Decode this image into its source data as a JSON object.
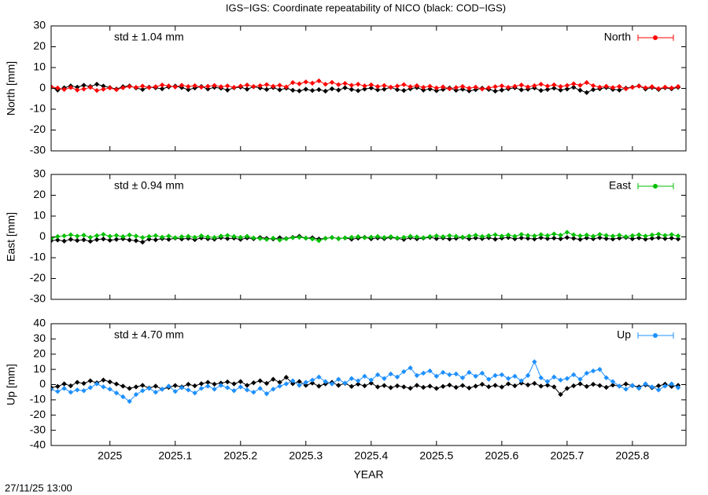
{
  "title": "IGS−IGS: Coordinate repeatability of NICO (black: COD−IGS)",
  "footer": "27/11/25 13:00",
  "chart_data": [
    {
      "type": "line",
      "ylabel": "North [mm]",
      "annotation": "std ± 1.04 mm",
      "xlim": [
        2024.91,
        2025.882
      ],
      "xticks": [
        2025,
        2025.1,
        2025.2,
        2025.3,
        2025.4,
        2025.5,
        2025.6,
        2025.7,
        2025.8
      ],
      "ylim": [
        -30,
        30
      ],
      "yticks": [
        -30,
        -20,
        -10,
        0,
        10,
        20,
        30
      ],
      "x": [
        2024.91,
        2024.92,
        2024.93,
        2024.94,
        2024.95,
        2024.96,
        2024.97,
        2024.98,
        2024.99,
        2025.0,
        2025.01,
        2025.02,
        2025.03,
        2025.04,
        2025.05,
        2025.06,
        2025.07,
        2025.08,
        2025.09,
        2025.1,
        2025.11,
        2025.12,
        2025.13,
        2025.14,
        2025.15,
        2025.16,
        2025.17,
        2025.18,
        2025.19,
        2025.2,
        2025.21,
        2025.22,
        2025.23,
        2025.24,
        2025.25,
        2025.26,
        2025.27,
        2025.28,
        2025.29,
        2025.3,
        2025.31,
        2025.32,
        2025.33,
        2025.34,
        2025.35,
        2025.36,
        2025.37,
        2025.38,
        2025.39,
        2025.4,
        2025.41,
        2025.42,
        2025.43,
        2025.44,
        2025.45,
        2025.46,
        2025.47,
        2025.48,
        2025.49,
        2025.5,
        2025.51,
        2025.52,
        2025.53,
        2025.54,
        2025.55,
        2025.56,
        2025.57,
        2025.58,
        2025.59,
        2025.6,
        2025.61,
        2025.62,
        2025.63,
        2025.64,
        2025.65,
        2025.66,
        2025.67,
        2025.68,
        2025.69,
        2025.7,
        2025.71,
        2025.72,
        2025.73,
        2025.74,
        2025.75,
        2025.76,
        2025.77,
        2025.78,
        2025.79,
        2025.8,
        2025.81,
        2025.82,
        2025.83,
        2025.84,
        2025.85,
        2025.86,
        2025.87
      ],
      "series": [
        {
          "color": "#000000",
          "values": [
            0.5,
            -0.8,
            0.3,
            1.2,
            0.6,
            1.5,
            0.9,
            2.0,
            1.1,
            0.4,
            -0.3,
            0.8,
            1.2,
            0.2,
            -0.5,
            0.6,
            0.3,
            -0.2,
            0.7,
            1.1,
            0.4,
            -0.6,
            0.2,
            0.9,
            -0.3,
            0.5,
            0.1,
            -0.8,
            0.3,
            0.6,
            -0.4,
            0.8,
            0.2,
            -0.5,
            0.4,
            -0.7,
            0.1,
            -0.9,
            -1.2,
            -0.4,
            -1.0,
            -0.6,
            -1.3,
            -0.2,
            -0.8,
            0.3,
            -0.5,
            -1.1,
            -0.3,
            0.2,
            -0.7,
            -0.4,
            0.5,
            -0.6,
            -1.0,
            -0.2,
            0.4,
            -0.8,
            -0.3,
            -1.1,
            -0.5,
            0.2,
            -0.9,
            -0.4,
            -1.2,
            -0.6,
            0.1,
            -0.5,
            -1.3,
            -0.8,
            -0.2,
            0.3,
            -0.7,
            -0.4,
            0.2,
            -1.0,
            -0.5,
            0.1,
            -0.8,
            -0.3,
            0.5,
            -0.9,
            -2.0,
            -0.6,
            -0.2,
            0.4,
            -0.5,
            -0.8,
            0.1,
            0.6,
            1.2,
            -0.3,
            0.4,
            -0.5,
            0.3,
            -0.2,
            0.5
          ]
        },
        {
          "name": "North",
          "color": "#ff0000",
          "values": [
            0.8,
            0.2,
            -0.5,
            0.4,
            -0.8,
            -0.3,
            0.5,
            -1.0,
            -0.4,
            0.2,
            -0.6,
            0.3,
            0.9,
            0.5,
            1.1,
            0.4,
            0.8,
            1.6,
            1.2,
            0.7,
            1.5,
            0.9,
            1.3,
            0.6,
            1.0,
            1.4,
            0.8,
            1.2,
            0.5,
            1.1,
            1.6,
            0.9,
            1.3,
            1.8,
            1.0,
            1.5,
            0.7,
            2.8,
            2.2,
            3.1,
            2.5,
            3.6,
            2.0,
            2.9,
            1.8,
            2.4,
            1.5,
            2.0,
            1.2,
            1.7,
            0.9,
            1.4,
            0.6,
            1.1,
            1.8,
            0.8,
            1.3,
            0.5,
            1.0,
            0.2,
            0.7,
            -0.2,
            0.4,
            0.9,
            0.1,
            0.6,
            -0.3,
            0.3,
            0.8,
            1.2,
            0.5,
            1.0,
            1.6,
            0.7,
            1.3,
            2.0,
            1.1,
            1.7,
            0.9,
            1.4,
            2.2,
            1.5,
            2.8,
            1.3,
            0.6,
            1.0,
            0.4,
            0.9,
            -0.2,
            0.5,
            1.1,
            0.3,
            0.8,
            -0.1,
            0.6,
            0.2,
            0.9
          ]
        }
      ]
    },
    {
      "type": "line",
      "ylabel": "East [mm]",
      "annotation": "std ± 0.94 mm",
      "xlim": [
        2024.91,
        2025.882
      ],
      "xticks": [
        2025,
        2025.1,
        2025.2,
        2025.3,
        2025.4,
        2025.5,
        2025.6,
        2025.7,
        2025.8
      ],
      "ylim": [
        -30,
        30
      ],
      "yticks": [
        -30,
        -20,
        -10,
        0,
        10,
        20,
        30
      ],
      "x": [
        2024.91,
        2024.92,
        2024.93,
        2024.94,
        2024.95,
        2024.96,
        2024.97,
        2024.98,
        2024.99,
        2025.0,
        2025.01,
        2025.02,
        2025.03,
        2025.04,
        2025.05,
        2025.06,
        2025.07,
        2025.08,
        2025.09,
        2025.1,
        2025.11,
        2025.12,
        2025.13,
        2025.14,
        2025.15,
        2025.16,
        2025.17,
        2025.18,
        2025.19,
        2025.2,
        2025.21,
        2025.22,
        2025.23,
        2025.24,
        2025.25,
        2025.26,
        2025.27,
        2025.28,
        2025.29,
        2025.3,
        2025.31,
        2025.32,
        2025.33,
        2025.34,
        2025.35,
        2025.36,
        2025.37,
        2025.38,
        2025.39,
        2025.4,
        2025.41,
        2025.42,
        2025.43,
        2025.44,
        2025.45,
        2025.46,
        2025.47,
        2025.48,
        2025.49,
        2025.5,
        2025.51,
        2025.52,
        2025.53,
        2025.54,
        2025.55,
        2025.56,
        2025.57,
        2025.58,
        2025.59,
        2025.6,
        2025.61,
        2025.62,
        2025.63,
        2025.64,
        2025.65,
        2025.66,
        2025.67,
        2025.68,
        2025.69,
        2025.7,
        2025.71,
        2025.72,
        2025.73,
        2025.74,
        2025.75,
        2025.76,
        2025.77,
        2025.78,
        2025.79,
        2025.8,
        2025.81,
        2025.82,
        2025.83,
        2025.84,
        2025.85,
        2025.86,
        2025.87
      ],
      "series": [
        {
          "color": "#000000",
          "values": [
            -1.8,
            -1.5,
            -2.0,
            -1.2,
            -1.7,
            -1.4,
            -2.1,
            -1.3,
            -1.0,
            -1.6,
            -1.2,
            -0.9,
            -1.5,
            -1.8,
            -2.5,
            -1.1,
            -1.4,
            -0.8,
            -1.2,
            -0.6,
            -1.0,
            -0.7,
            -1.3,
            -0.5,
            -0.9,
            -1.1,
            -0.4,
            -0.8,
            -0.6,
            -1.2,
            -0.5,
            -0.9,
            -0.3,
            -0.7,
            -1.0,
            -0.4,
            -0.8,
            -0.2,
            0.3,
            -0.6,
            -0.4,
            -1.0,
            -0.7,
            -0.3,
            -0.8,
            -0.5,
            -1.1,
            -0.6,
            -0.2,
            -0.9,
            -0.5,
            -0.8,
            -0.3,
            -0.7,
            -1.2,
            -0.4,
            -0.9,
            -0.6,
            -0.2,
            -0.8,
            -0.5,
            -1.0,
            -0.7,
            -0.3,
            -0.9,
            -0.5,
            -0.8,
            -0.4,
            -1.1,
            -0.6,
            -0.3,
            -0.9,
            -0.5,
            -0.7,
            -1.0,
            -0.4,
            -0.8,
            -0.6,
            -0.9,
            -0.3,
            -0.7,
            -1.2,
            -0.5,
            -0.9,
            -0.4,
            -0.8,
            -1.0,
            -0.6,
            -0.3,
            -0.9,
            -0.5,
            -1.1,
            -0.7,
            -0.4,
            -0.8,
            -0.6,
            -1.0
          ]
        },
        {
          "name": "East",
          "color": "#00c000",
          "values": [
            -0.8,
            0.2,
            0.5,
            1.0,
            0.4,
            0.8,
            -0.2,
            0.6,
            1.2,
            0.3,
            0.7,
            0.1,
            0.9,
            0.4,
            -0.3,
            0.2,
            0.6,
            -0.1,
            0.4,
            -0.4,
            0.1,
            0.3,
            -0.2,
            0.5,
            0.0,
            -0.3,
            0.4,
            0.7,
            0.2,
            -0.2,
            0.3,
            -0.5,
            -0.8,
            -1.2,
            -0.6,
            -1.5,
            -0.9,
            -0.4,
            -0.2,
            -0.6,
            -1.0,
            -1.8,
            -0.7,
            -0.3,
            -0.9,
            -0.5,
            -0.2,
            0.1,
            -0.4,
            -0.1,
            0.2,
            -0.3,
            0.1,
            -0.5,
            -0.2,
            0.3,
            0.0,
            -0.4,
            0.2,
            0.5,
            0.1,
            0.6,
            0.3,
            -0.1,
            0.4,
            0.8,
            0.2,
            0.6,
            1.0,
            0.4,
            0.9,
            0.3,
            1.2,
            0.7,
            0.5,
            1.1,
            0.6,
            1.4,
            0.8,
            2.2,
            1.0,
            0.5,
            0.9,
            0.3,
            1.2,
            0.7,
            0.4,
            0.8,
            0.1,
            0.6,
            1.0,
            0.4,
            0.9,
            1.3,
            0.7,
            1.1,
            0.5
          ]
        }
      ]
    },
    {
      "type": "line",
      "ylabel": "Up [mm]",
      "annotation": "std ± 4.70 mm",
      "xlabel": "YEAR",
      "xlim": [
        2024.91,
        2025.882
      ],
      "xticks": [
        2025,
        2025.1,
        2025.2,
        2025.3,
        2025.4,
        2025.5,
        2025.6,
        2025.7,
        2025.8
      ],
      "ylim": [
        -40,
        40
      ],
      "yticks": [
        -40,
        -30,
        -20,
        -10,
        0,
        10,
        20,
        30,
        40
      ],
      "x": [
        2024.91,
        2024.92,
        2024.93,
        2024.94,
        2024.95,
        2024.96,
        2024.97,
        2024.98,
        2024.99,
        2025.0,
        2025.01,
        2025.02,
        2025.03,
        2025.04,
        2025.05,
        2025.06,
        2025.07,
        2025.08,
        2025.09,
        2025.1,
        2025.11,
        2025.12,
        2025.13,
        2025.14,
        2025.15,
        2025.16,
        2025.17,
        2025.18,
        2025.19,
        2025.2,
        2025.21,
        2025.22,
        2025.23,
        2025.24,
        2025.25,
        2025.26,
        2025.27,
        2025.28,
        2025.29,
        2025.3,
        2025.31,
        2025.32,
        2025.33,
        2025.34,
        2025.35,
        2025.36,
        2025.37,
        2025.38,
        2025.39,
        2025.4,
        2025.41,
        2025.42,
        2025.43,
        2025.44,
        2025.45,
        2025.46,
        2025.47,
        2025.48,
        2025.49,
        2025.5,
        2025.51,
        2025.52,
        2025.53,
        2025.54,
        2025.55,
        2025.56,
        2025.57,
        2025.58,
        2025.59,
        2025.6,
        2025.61,
        2025.62,
        2025.63,
        2025.64,
        2025.65,
        2025.66,
        2025.67,
        2025.68,
        2025.69,
        2025.7,
        2025.71,
        2025.72,
        2025.73,
        2025.74,
        2025.75,
        2025.76,
        2025.77,
        2025.78,
        2025.79,
        2025.8,
        2025.81,
        2025.82,
        2025.83,
        2025.84,
        2025.85,
        2025.86,
        2025.87
      ],
      "series": [
        {
          "color": "#000000",
          "values": [
            -2.0,
            -1.2,
            0.5,
            -0.8,
            1.5,
            0.8,
            2.5,
            1.2,
            3.0,
            1.8,
            0.4,
            -1.0,
            -2.5,
            -1.5,
            -0.5,
            -2.2,
            -1.0,
            -3.0,
            -1.8,
            -0.6,
            -1.5,
            0.2,
            -0.8,
            0.6,
            1.5,
            0.3,
            1.0,
            1.8,
            0.5,
            2.0,
            -0.5,
            1.2,
            2.5,
            0.8,
            3.5,
            1.5,
            4.8,
            0.6,
            2.0,
            -0.5,
            1.0,
            -1.0,
            0.5,
            1.5,
            -0.5,
            0.8,
            -1.2,
            0.3,
            -0.8,
            1.0,
            -1.5,
            -0.6,
            -2.0,
            -0.8,
            -1.5,
            -2.4,
            -0.5,
            -1.8,
            -1.0,
            -2.5,
            -1.2,
            -0.3,
            -1.8,
            -0.6,
            -2.2,
            -1.0,
            0.2,
            -1.4,
            -0.5,
            -1.6,
            0.5,
            -0.8,
            1.0,
            -0.2,
            0.8,
            -1.0,
            -0.4,
            -1.5,
            -6.5,
            -2.5,
            -0.8,
            0.5,
            -1.2,
            0.2,
            -0.6,
            -1.8,
            -0.3,
            -1.0,
            0.4,
            -0.7,
            -1.5,
            -0.2,
            -2.0,
            -0.8,
            0.3,
            -1.2,
            -0.5
          ]
        },
        {
          "name": "Up",
          "color": "#1e90ff",
          "values": [
            -3.0,
            -4.5,
            -2.5,
            -5.0,
            -3.5,
            -4.0,
            -2.0,
            0.5,
            -1.5,
            -3.0,
            -5.5,
            -8.0,
            -11.0,
            -6.5,
            -4.0,
            -2.5,
            -5.0,
            -3.0,
            -1.0,
            -4.5,
            -2.0,
            -3.5,
            -5.5,
            -2.5,
            -1.0,
            -3.0,
            -0.5,
            -2.0,
            -4.0,
            -1.5,
            -3.5,
            -5.0,
            -2.5,
            -6.0,
            -3.0,
            -1.0,
            0.5,
            2.5,
            -0.5,
            1.5,
            3.0,
            5.0,
            2.0,
            0.5,
            3.5,
            1.0,
            4.0,
            2.5,
            5.5,
            3.0,
            6.5,
            4.0,
            7.0,
            5.0,
            8.5,
            11.0,
            6.0,
            7.5,
            9.0,
            5.5,
            8.0,
            6.5,
            7.0,
            4.5,
            8.0,
            5.5,
            7.5,
            3.5,
            6.0,
            6.5,
            4.0,
            5.5,
            2.5,
            6.0,
            15.0,
            4.5,
            2.0,
            5.0,
            3.0,
            4.0,
            6.5,
            3.5,
            7.5,
            9.0,
            10.0,
            4.5,
            2.0,
            -1.0,
            -3.0,
            -0.5,
            -2.5,
            0.5,
            -1.5,
            -3.5,
            -1.0,
            0.5,
            -2.0
          ]
        }
      ]
    }
  ]
}
